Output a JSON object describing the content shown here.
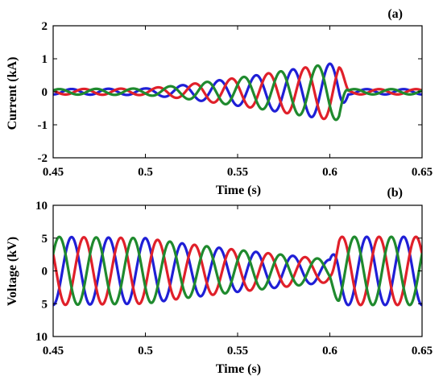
{
  "chart_data": [
    {
      "type": "line",
      "panel_label": "(a)",
      "xlabel": "Time (s)",
      "ylabel": "Current (kA)",
      "xlim": [
        0.45,
        0.65
      ],
      "ylim": [
        -2,
        2
      ],
      "xticks": [
        "0.45",
        "0.5",
        "0.55",
        "0.6",
        "0.65"
      ],
      "yticks": [
        "2",
        "1",
        "0",
        "-1",
        "-2"
      ],
      "grid": false,
      "frequency_hz": 50,
      "series": [
        {
          "color": "#1f1fd6",
          "phase_deg": 90,
          "envelope": {
            "t": [
              0.45,
              0.5,
              0.52,
              0.54,
              0.56,
              0.58,
              0.6,
              0.605,
              0.61,
              0.65
            ],
            "amplitude": [
              0.08,
              0.1,
              0.2,
              0.35,
              0.5,
              0.68,
              0.85,
              0.85,
              0.08,
              0.08
            ]
          }
        },
        {
          "color": "#e0202a",
          "phase_deg": -30,
          "envelope": {
            "t": [
              0.45,
              0.5,
              0.52,
              0.54,
              0.56,
              0.58,
              0.6,
              0.605,
              0.61,
              0.65
            ],
            "amplitude": [
              0.08,
              0.1,
              0.2,
              0.35,
              0.5,
              0.68,
              0.85,
              0.85,
              0.08,
              0.08
            ]
          }
        },
        {
          "color": "#1f8a2e",
          "phase_deg": 210,
          "envelope": {
            "t": [
              0.45,
              0.5,
              0.52,
              0.54,
              0.56,
              0.58,
              0.6,
              0.605,
              0.61,
              0.65
            ],
            "amplitude": [
              0.08,
              0.1,
              0.2,
              0.35,
              0.5,
              0.68,
              0.85,
              0.85,
              0.08,
              0.08
            ]
          }
        }
      ]
    },
    {
      "type": "line",
      "panel_label": "(b)",
      "xlabel": "Time (s)",
      "ylabel": "Voltage (kV)",
      "xlim": [
        0.45,
        0.65
      ],
      "ylim": [
        -10,
        10
      ],
      "xticks": [
        "0.45",
        "0.5",
        "0.55",
        "0.6",
        "0.65"
      ],
      "yticks": [
        "10",
        "5",
        "0",
        "5",
        "10"
      ],
      "grid": false,
      "frequency_hz": 50,
      "series": [
        {
          "color": "#1f1fd6",
          "phase_deg": 90,
          "envelope": {
            "t": [
              0.45,
              0.5,
              0.52,
              0.55,
              0.58,
              0.6,
              0.605,
              0.65
            ],
            "amplitude": [
              5.2,
              5.0,
              4.2,
              3.2,
              2.3,
              1.7,
              5.2,
              5.2
            ]
          }
        },
        {
          "color": "#e0202a",
          "phase_deg": -30,
          "envelope": {
            "t": [
              0.45,
              0.5,
              0.52,
              0.55,
              0.58,
              0.6,
              0.605,
              0.65
            ],
            "amplitude": [
              5.2,
              5.0,
              4.2,
              3.2,
              2.3,
              1.7,
              5.2,
              5.2
            ]
          }
        },
        {
          "color": "#1f8a2e",
          "phase_deg": 210,
          "envelope": {
            "t": [
              0.45,
              0.5,
              0.52,
              0.55,
              0.58,
              0.6,
              0.605,
              0.65
            ],
            "amplitude": [
              5.2,
              5.0,
              4.2,
              3.2,
              2.3,
              1.7,
              5.2,
              5.2
            ]
          }
        }
      ]
    }
  ]
}
